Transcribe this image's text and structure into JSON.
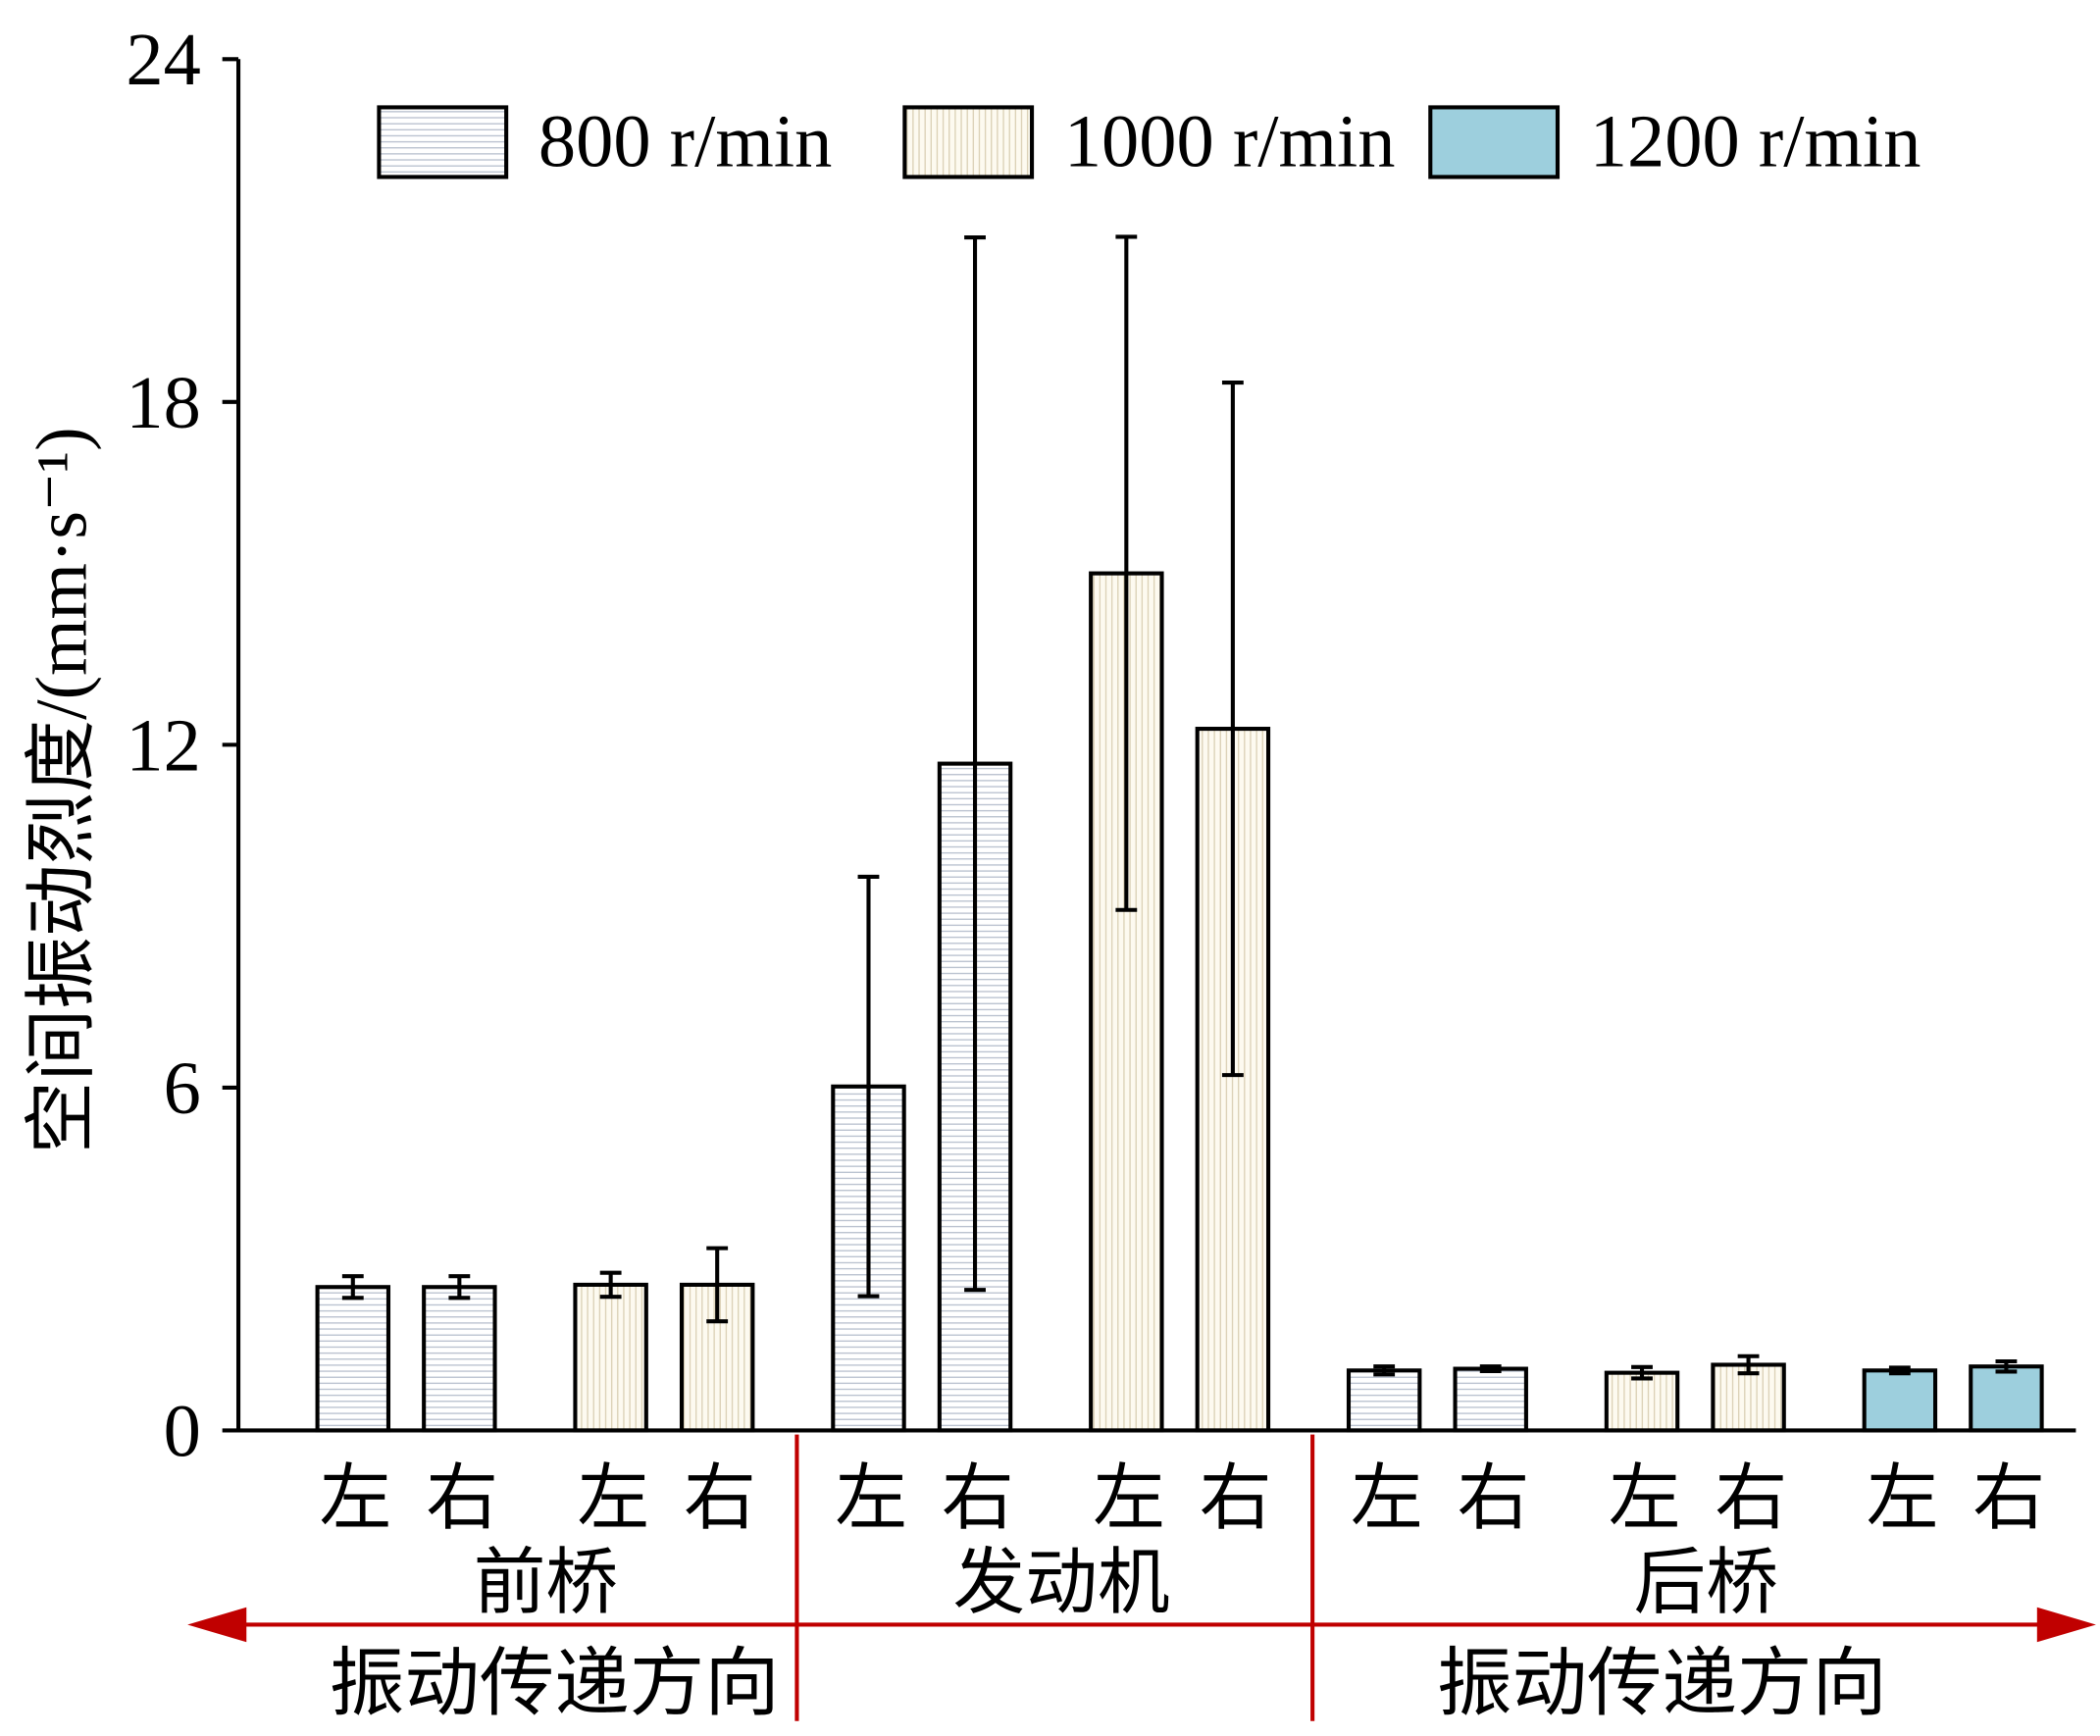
{
  "chart_data": {
    "type": "bar",
    "ylabel": "空间振动烈度/(mm·s⁻¹)",
    "ylim": [
      0,
      24
    ],
    "yticks": [
      0,
      6,
      12,
      18,
      24
    ],
    "grid": false,
    "legend": {
      "position": "top"
    },
    "bar_outline_color": "#000000",
    "series": [
      {
        "name": "800 r/min",
        "pattern": "horizontal-lines",
        "fill": "#ffffff",
        "pattern_color": "#b3bccb"
      },
      {
        "name": "1000 r/min",
        "pattern": "vertical-lines",
        "fill": "#fdfaf0",
        "pattern_color": "#d8cdb1"
      },
      {
        "name": "1200 r/min",
        "pattern": "solid",
        "fill": "#9dcfdd"
      }
    ],
    "groups": [
      {
        "label": "前桥",
        "bars": [
          {
            "series": 0,
            "label": "左",
            "value": 2.51,
            "error": 0.19
          },
          {
            "series": 0,
            "label": "右",
            "value": 2.51,
            "error": 0.19
          },
          {
            "series": 1,
            "label": "左",
            "value": 2.55,
            "error": 0.21
          },
          {
            "series": 1,
            "label": "右",
            "value": 2.55,
            "error": 0.64
          }
        ]
      },
      {
        "label": "发动机",
        "bars": [
          {
            "series": 0,
            "label": "左",
            "value": 6.02,
            "error": 3.67
          },
          {
            "series": 0,
            "label": "右",
            "value": 11.67,
            "error": 9.21
          },
          {
            "series": 1,
            "label": "左",
            "value": 15.0,
            "error": 5.89
          },
          {
            "series": 1,
            "label": "右",
            "value": 12.28,
            "error": 6.06
          }
        ]
      },
      {
        "label": "后桥",
        "bars": [
          {
            "series": 0,
            "label": "左",
            "value": 1.05,
            "error": 0.07
          },
          {
            "series": 0,
            "label": "右",
            "value": 1.08,
            "error": 0.04
          },
          {
            "series": 1,
            "label": "左",
            "value": 1.01,
            "error": 0.1
          },
          {
            "series": 1,
            "label": "右",
            "value": 1.15,
            "error": 0.15
          },
          {
            "series": 2,
            "label": "左",
            "value": 1.05,
            "error": 0.05
          },
          {
            "series": 2,
            "label": "右",
            "value": 1.12,
            "error": 0.09
          }
        ]
      }
    ],
    "annotations": {
      "direction_labels": [
        "振动传递方向",
        "振动传递方向"
      ],
      "color": "#c00000"
    }
  }
}
